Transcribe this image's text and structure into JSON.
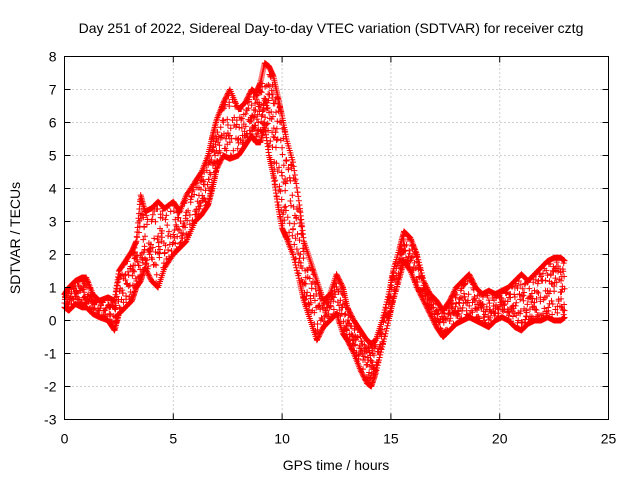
{
  "chart_data": {
    "type": "scatter",
    "title": "Day 251 of 2022, Sidereal Day-to-day VTEC variation (SDTVAR) for receiver cztg",
    "xlabel": "GPS time / hours",
    "ylabel": "SDTVAR / TECUs",
    "xlim": [
      0,
      25
    ],
    "ylim": [
      -3,
      8
    ],
    "xticks": [
      "0",
      "5",
      "10",
      "15",
      "20",
      "25"
    ],
    "yticks": [
      "-3",
      "-2",
      "-1",
      "0",
      "1",
      "2",
      "3",
      "4",
      "5",
      "6",
      "7",
      "8"
    ],
    "grid": true,
    "marker": "plus",
    "color": "#ff0000",
    "series": [
      {
        "name": "SDTVAR",
        "envelope": [
          [
            0.0,
            0.4,
            0.8
          ],
          [
            0.2,
            0.3,
            1.0
          ],
          [
            0.5,
            0.5,
            1.2
          ],
          [
            0.8,
            0.4,
            1.3
          ],
          [
            1.0,
            0.4,
            1.3
          ],
          [
            1.3,
            0.2,
            0.8
          ],
          [
            1.6,
            0.1,
            0.6
          ],
          [
            2.0,
            0.0,
            0.7
          ],
          [
            2.3,
            -0.3,
            0.6
          ],
          [
            2.5,
            0.2,
            1.5
          ],
          [
            2.8,
            0.4,
            1.8
          ],
          [
            3.1,
            0.6,
            2.1
          ],
          [
            3.3,
            1.0,
            2.4
          ],
          [
            3.5,
            1.2,
            3.8
          ],
          [
            3.7,
            1.6,
            3.3
          ],
          [
            4.0,
            1.2,
            3.4
          ],
          [
            4.3,
            1.0,
            3.6
          ],
          [
            4.6,
            1.6,
            3.4
          ],
          [
            5.0,
            2.0,
            3.6
          ],
          [
            5.3,
            2.2,
            3.3
          ],
          [
            5.6,
            2.4,
            3.8
          ],
          [
            6.0,
            3.0,
            4.2
          ],
          [
            6.3,
            3.2,
            4.5
          ],
          [
            6.6,
            3.5,
            5.0
          ],
          [
            6.8,
            4.0,
            5.6
          ],
          [
            7.0,
            4.6,
            6.1
          ],
          [
            7.3,
            5.0,
            6.6
          ],
          [
            7.6,
            4.9,
            7.0
          ],
          [
            8.0,
            5.0,
            6.4
          ],
          [
            8.3,
            5.3,
            6.6
          ],
          [
            8.6,
            5.6,
            7.0
          ],
          [
            8.8,
            5.4,
            6.9
          ],
          [
            9.0,
            5.4,
            7.2
          ],
          [
            9.2,
            5.9,
            7.8
          ],
          [
            9.4,
            5.0,
            7.7
          ],
          [
            9.6,
            4.4,
            7.4
          ],
          [
            9.8,
            3.5,
            6.8
          ],
          [
            10.0,
            2.8,
            6.2
          ],
          [
            10.2,
            2.5,
            5.5
          ],
          [
            10.5,
            2.0,
            4.8
          ],
          [
            10.8,
            1.2,
            3.5
          ],
          [
            11.0,
            0.6,
            2.4
          ],
          [
            11.3,
            0.0,
            1.8
          ],
          [
            11.6,
            -0.6,
            1.2
          ],
          [
            11.9,
            -0.2,
            0.6
          ],
          [
            12.2,
            0.0,
            0.8
          ],
          [
            12.5,
            0.2,
            1.4
          ],
          [
            12.8,
            -0.4,
            1.0
          ],
          [
            13.0,
            -0.6,
            0.4
          ],
          [
            13.3,
            -1.0,
            0.0
          ],
          [
            13.6,
            -1.5,
            -0.3
          ],
          [
            13.9,
            -1.9,
            -0.6
          ],
          [
            14.1,
            -2.0,
            -0.7
          ],
          [
            14.3,
            -1.6,
            -0.6
          ],
          [
            14.6,
            -0.8,
            0.0
          ],
          [
            14.9,
            0.0,
            0.8
          ],
          [
            15.1,
            0.6,
            1.5
          ],
          [
            15.4,
            1.3,
            2.2
          ],
          [
            15.6,
            1.8,
            2.7
          ],
          [
            15.9,
            1.5,
            2.5
          ],
          [
            16.2,
            1.0,
            2.0
          ],
          [
            16.5,
            0.6,
            1.2
          ],
          [
            16.8,
            0.2,
            0.8
          ],
          [
            17.1,
            -0.2,
            0.6
          ],
          [
            17.4,
            -0.5,
            0.3
          ],
          [
            17.7,
            -0.3,
            0.6
          ],
          [
            18.0,
            -0.1,
            1.0
          ],
          [
            18.3,
            0.0,
            1.2
          ],
          [
            18.6,
            0.1,
            1.4
          ],
          [
            18.9,
            0.0,
            1.0
          ],
          [
            19.2,
            -0.1,
            0.8
          ],
          [
            19.5,
            -0.2,
            0.9
          ],
          [
            19.8,
            0.0,
            0.8
          ],
          [
            20.1,
            0.1,
            0.9
          ],
          [
            20.4,
            0.0,
            1.0
          ],
          [
            20.7,
            -0.2,
            1.2
          ],
          [
            21.0,
            -0.3,
            1.4
          ],
          [
            21.3,
            -0.1,
            1.2
          ],
          [
            21.6,
            0.0,
            1.4
          ],
          [
            21.9,
            0.0,
            1.6
          ],
          [
            22.2,
            0.1,
            1.8
          ],
          [
            22.5,
            0.0,
            1.9
          ],
          [
            22.8,
            0.0,
            1.9
          ],
          [
            23.0,
            0.1,
            1.8
          ]
        ]
      }
    ]
  }
}
